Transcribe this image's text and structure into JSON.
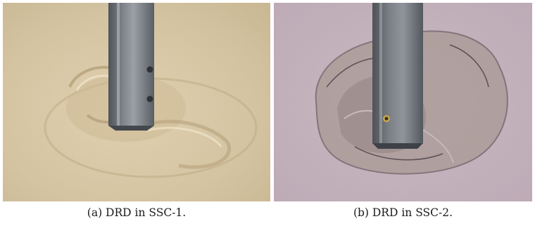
{
  "figure": {
    "panels": [
      {
        "caption": "(a)  DRD in SSC-1.",
        "colors": {
          "sand": "#d8c8a6",
          "sand_dark": "#b9a783",
          "rod": "#6e7378",
          "rod_highlight": "#9aa0a5"
        }
      },
      {
        "caption": "(b)  DRD in SSC-2.",
        "colors": {
          "surface": "#c7b6c0",
          "crater": "#a79890",
          "rod": "#6d7178",
          "rod_highlight": "#8f949a"
        }
      }
    ]
  }
}
